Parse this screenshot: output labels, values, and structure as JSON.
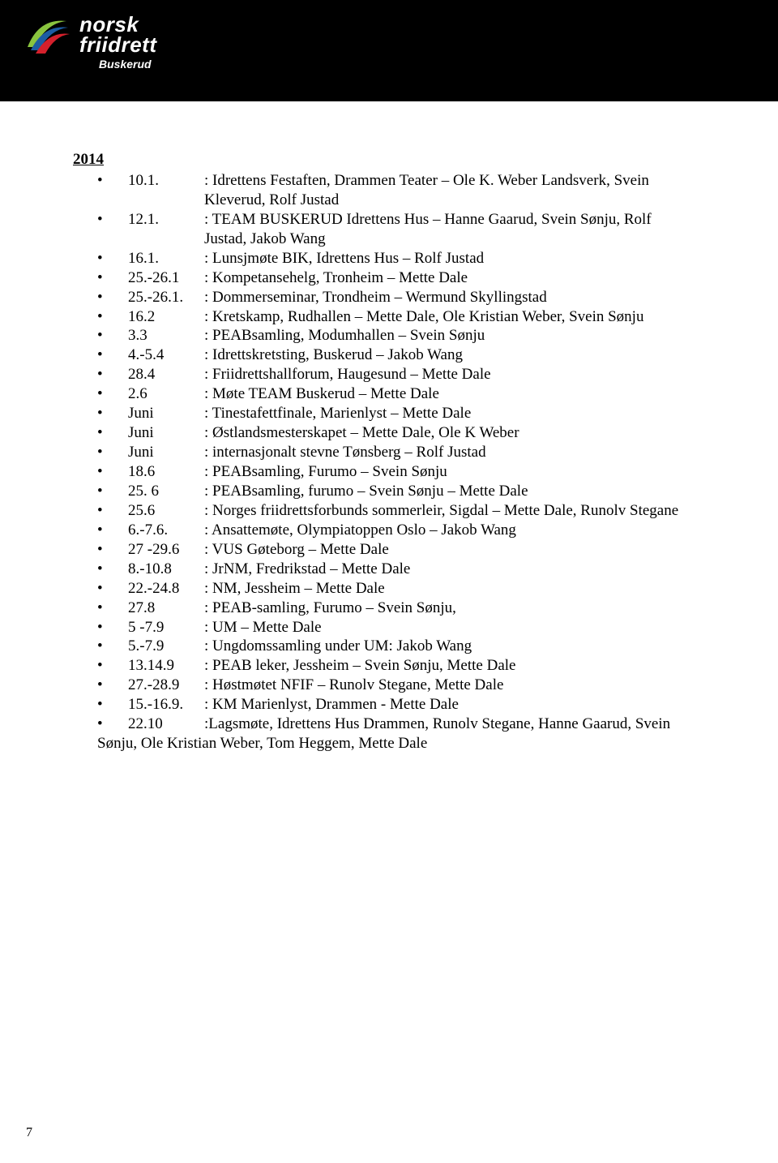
{
  "header": {
    "logo_line1": "norsk",
    "logo_line2": "friidrett",
    "logo_sub": "Buskerud",
    "banner_bg": "#000000",
    "stripe_color": "#1d5ca3",
    "logo_swoosh_colors": [
      "#8ac43f",
      "#1d5ca3",
      "#d4202c"
    ]
  },
  "body": {
    "year": "2014",
    "items": [
      {
        "date": "10.1.",
        "text": ": Idrettens Festaften, Drammen Teater – Ole K. Weber Landsverk, Svein",
        "cont": "Kleverud, Rolf Justad"
      },
      {
        "date": "12.1.",
        "text": ": TEAM BUSKERUD  Idrettens Hus – Hanne Gaarud, Svein Sønju, Rolf",
        "cont": "Justad, Jakob Wang"
      },
      {
        "date": "16.1.",
        "text": ": Lunsjmøte BIK, Idrettens Hus – Rolf Justad"
      },
      {
        "date": "25.-26.1",
        "text": ": Kompetansehelg, Tronheim – Mette Dale"
      },
      {
        "date": "25.-26.1.",
        "text": ": Dommerseminar, Trondheim – Wermund Skyllingstad"
      },
      {
        "date": "16.2",
        "text": ": Kretskamp, Rudhallen – Mette Dale, Ole Kristian Weber, Svein Sønju"
      },
      {
        "date": "3.3",
        "text": ": PEABsamling, Modumhallen – Svein Sønju"
      },
      {
        "date": "4.-5.4",
        "text": ": Idrettskretsting, Buskerud – Jakob Wang"
      },
      {
        "date": "28.4",
        "text": ": Friidrettshallforum, Haugesund – Mette Dale"
      },
      {
        "date": "2.6",
        "text": ": Møte TEAM Buskerud – Mette Dale"
      },
      {
        "date": "Juni",
        "text": ": Tinestafettfinale, Marienlyst  – Mette Dale"
      },
      {
        "date": "Juni",
        "text": ": Østlandsmesterskapet – Mette Dale, Ole K Weber"
      },
      {
        "date": "Juni",
        "text": ": internasjonalt stevne Tønsberg – Rolf Justad"
      },
      {
        "date": "18.6",
        "text": ": PEABsamling, Furumo – Svein Sønju"
      },
      {
        "date": "25. 6",
        "text": ": PEABsamling, furumo – Svein Sønju – Mette Dale"
      },
      {
        "date": "25.6",
        "text": ": Norges friidrettsforbunds sommerleir, Sigdal – Mette Dale, Runolv Stegane"
      },
      {
        "date": "6.-7.6.",
        "text": ": Ansattemøte, Olympiatoppen Oslo – Jakob Wang"
      },
      {
        "date": "27 -29.6",
        "text": ": VUS Gøteborg – Mette Dale"
      },
      {
        "date": "8.-10.8",
        "text": ": JrNM, Fredrikstad – Mette Dale"
      },
      {
        "date": "22.-24.8",
        "text": ": NM, Jessheim – Mette Dale"
      },
      {
        "date": "27.8",
        "text": ": PEAB-samling, Furumo – Svein Sønju,"
      },
      {
        "date": "5 -7.9",
        "text": ": UM – Mette Dale"
      },
      {
        "date": "5.-7.9",
        "text": ": Ungdomssamling under UM: Jakob Wang"
      },
      {
        "date": "13.14.9",
        "text": ": PEAB leker, Jessheim – Svein Sønju, Mette Dale"
      },
      {
        "date": "27.-28.9",
        "text": ": Høstmøtet NFIF – Runolv Stegane, Mette Dale"
      },
      {
        "date": "15.-16.9.",
        "text": ": KM Marienlyst, Drammen  -  Mette Dale"
      },
      {
        "date": "22.10",
        "text": ":Lagsmøte, Idrettens Hus Drammen, Runolv Stegane, Hanne Gaarud, Svein",
        "cont_noindent": "Sønju, Ole Kristian Weber, Tom Heggem, Mette Dale"
      }
    ]
  },
  "page_number": "7",
  "style": {
    "page_bg": "#ffffff",
    "text_color": "#000000",
    "body_font_size_pt": 14,
    "heading_underline": true
  }
}
